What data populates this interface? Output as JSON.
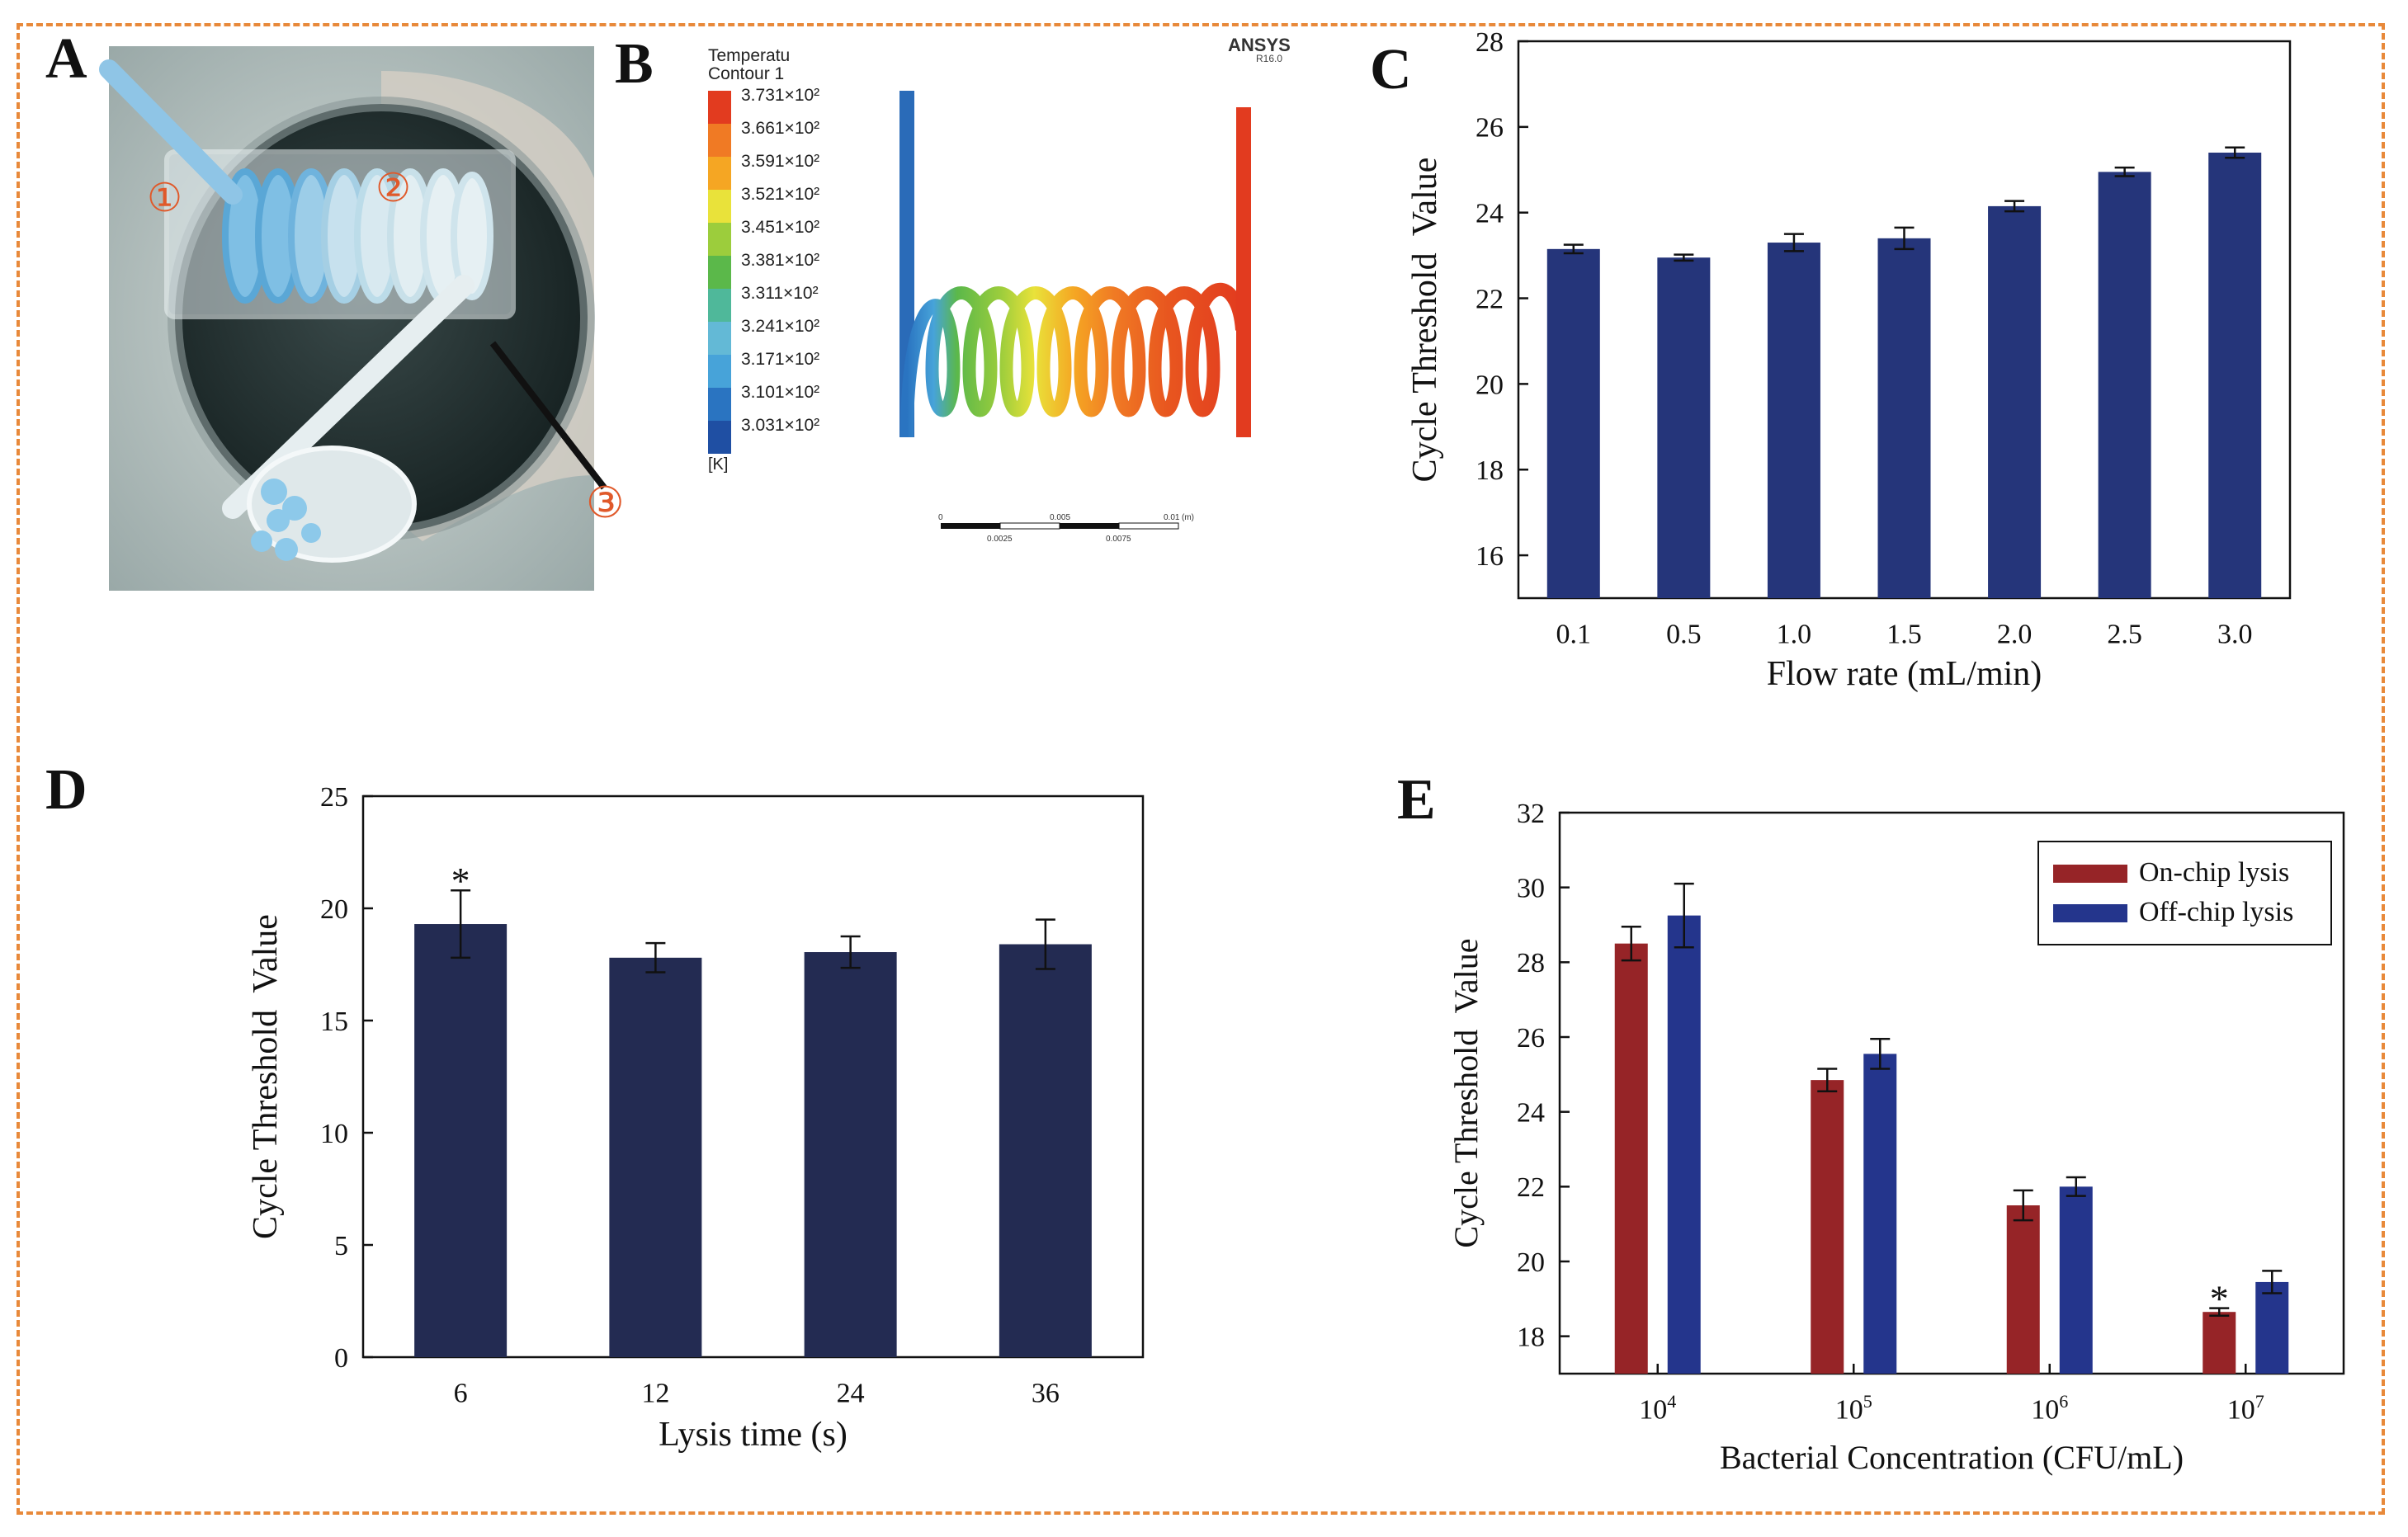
{
  "panels": {
    "A": "A",
    "B": "B",
    "C": "C",
    "D": "D",
    "E": "E"
  },
  "photo": {
    "markers": [
      "①",
      "②",
      "③"
    ],
    "colors": {
      "marker": "#e0592a",
      "fluid": "#8fc7e6",
      "background": "#b9c7c5"
    }
  },
  "simulation": {
    "brand": "ANSYS",
    "version": "R16.0",
    "legend_title_1": "Temperatu",
    "legend_title_2": "Contour 1",
    "legend_values": [
      "3.731×10²",
      "3.661×10²",
      "3.591×10²",
      "3.521×10²",
      "3.451×10²",
      "3.381×10²",
      "3.311×10²",
      "3.241×10²",
      "3.171×10²",
      "3.101×10²",
      "3.031×10²"
    ],
    "legend_colors": [
      "#e23b1f",
      "#f07a24",
      "#f5a623",
      "#e9e23a",
      "#9ccd3c",
      "#5bb84a",
      "#4fb89a",
      "#63b9d6",
      "#47a3d9",
      "#2a74c1",
      "#1f4fa3"
    ],
    "unit": "[K]",
    "scale_labels": [
      "0",
      "0.005",
      "0.01",
      "(m)",
      "0.0025",
      "0.0075"
    ]
  },
  "chart_data": [
    {
      "id": "C",
      "type": "bar",
      "xlabel": "Flow rate (mL/min)",
      "ylabel": "Cycle Threshold  Value",
      "categories": [
        "0.1",
        "0.5",
        "1.0",
        "1.5",
        "2.0",
        "2.5",
        "3.0"
      ],
      "values": [
        23.15,
        22.95,
        23.3,
        23.4,
        24.15,
        24.95,
        25.4
      ],
      "errors": [
        0.1,
        0.07,
        0.2,
        0.25,
        0.12,
        0.1,
        0.12
      ],
      "ylim": [
        15,
        28
      ],
      "yticks": [
        "16",
        "18",
        "20",
        "22",
        "24",
        "26",
        "28"
      ],
      "color": "#25357a"
    },
    {
      "id": "D",
      "type": "bar",
      "xlabel": "Lysis time (s)",
      "ylabel": "Cycle Threshold  Value",
      "categories": [
        "6",
        "12",
        "24",
        "36"
      ],
      "values": [
        19.3,
        17.8,
        18.05,
        18.4
      ],
      "errors": [
        1.5,
        0.65,
        0.7,
        1.1
      ],
      "markers": [
        "*",
        "",
        "",
        ""
      ],
      "ylim": [
        0,
        25
      ],
      "yticks": [
        "0",
        "5",
        "10",
        "15",
        "20",
        "25"
      ],
      "color": "#232b52"
    },
    {
      "id": "E",
      "type": "bar",
      "xlabel": "Bacterial Concentration (CFU/mL)",
      "ylabel": "Cycle Threshold  Value",
      "categories": [
        "10",
        "10",
        "10",
        "10"
      ],
      "category_exponents": [
        "4",
        "5",
        "6",
        "7"
      ],
      "series": [
        {
          "name": "On-chip lysis",
          "values": [
            28.5,
            24.85,
            21.5,
            18.65
          ],
          "errors": [
            0.45,
            0.3,
            0.4,
            0.1
          ],
          "markers": [
            "",
            "",
            "",
            "*"
          ],
          "color": "#962427"
        },
        {
          "name": "Off-chip lysis",
          "values": [
            29.25,
            25.55,
            22.0,
            19.45
          ],
          "errors": [
            0.85,
            0.4,
            0.25,
            0.3
          ],
          "markers": [
            "",
            "",
            "",
            ""
          ],
          "color": "#24358c"
        }
      ],
      "ylim": [
        17,
        32
      ],
      "yticks": [
        "18",
        "20",
        "22",
        "24",
        "26",
        "28",
        "30",
        "32"
      ],
      "legend": "top-right"
    }
  ]
}
